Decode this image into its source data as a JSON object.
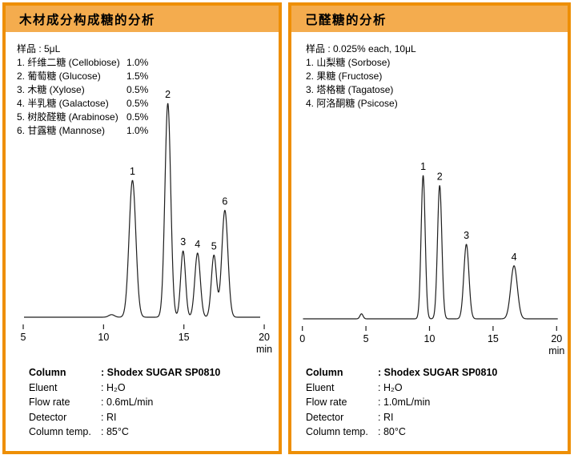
{
  "colors": {
    "panel_border": "#EE8F05",
    "header_bg": "#F4AC4E",
    "trace": "#1e1e1e",
    "text": "#000000"
  },
  "panels": [
    {
      "title": "木材成分构成糖的分析",
      "sample_header": "样品 : 5μL",
      "sample_items": [
        {
          "name": "1. 纤维二糖 (Cellobiose)",
          "pct": "1.0%"
        },
        {
          "name": "2. 葡萄糖 (Glucose)",
          "pct": "1.5%"
        },
        {
          "name": "3. 木糖 (Xylose)",
          "pct": "0.5%"
        },
        {
          "name": "4. 半乳糖 (Galactose)",
          "pct": "0.5%"
        },
        {
          "name": "5. 树胶醛糖 (Arabinose)",
          "pct": "0.5%"
        },
        {
          "name": "6. 甘露糖 (Mannose)",
          "pct": "1.0%"
        }
      ],
      "conditions": [
        {
          "label": "Column",
          "value": ": Shodex SUGAR SP0810",
          "bold": true
        },
        {
          "label": "Eluent",
          "value": ": H₂O",
          "bold": false
        },
        {
          "label": "Flow rate",
          "value": ": 0.6mL/min",
          "bold": false
        },
        {
          "label": "Detector",
          "value": ": RI",
          "bold": false
        },
        {
          "label": "Column temp.",
          "value": ": 85°C",
          "bold": false
        }
      ]
    },
    {
      "title": "己醛糖的分析",
      "sample_header": "样品 : 0.025% each, 10μL",
      "sample_items": [
        {
          "name": "1. 山梨糖 (Sorbose)",
          "pct": ""
        },
        {
          "name": "2. 果糖 (Fructose)",
          "pct": ""
        },
        {
          "name": "3. 塔格糖 (Tagatose)",
          "pct": ""
        },
        {
          "name": "4. 阿洛酮糖 (Psicose)",
          "pct": ""
        }
      ],
      "conditions": [
        {
          "label": "Column",
          "value": ": Shodex SUGAR SP0810",
          "bold": true
        },
        {
          "label": "Eluent",
          "value": ": H₂O",
          "bold": false
        },
        {
          "label": "Flow rate",
          "value": ": 1.0mL/min",
          "bold": false
        },
        {
          "label": "Detector",
          "value": ": RI",
          "bold": false
        },
        {
          "label": "Column temp.",
          "value": ": 80°C",
          "bold": false
        }
      ]
    }
  ],
  "chart_data": [
    {
      "type": "line",
      "title": "木材成分构成糖的分析 (chromatogram)",
      "xlabel": "min",
      "x_range": [
        5,
        20
      ],
      "x_ticks": [
        5,
        10,
        15,
        20
      ],
      "x_tick_labels": [
        "5",
        "10",
        "15",
        "20"
      ],
      "axis_unit": "min",
      "grid": false,
      "legend": "none",
      "peaks": [
        {
          "label": "1",
          "time_min": 11.8,
          "rel_height": 0.64,
          "sigma_min": 0.21
        },
        {
          "label": "2",
          "time_min": 14.0,
          "rel_height": 1.0,
          "sigma_min": 0.18
        },
        {
          "label": "3",
          "time_min": 14.95,
          "rel_height": 0.31,
          "sigma_min": 0.15
        },
        {
          "label": "4",
          "time_min": 15.85,
          "rel_height": 0.3,
          "sigma_min": 0.17
        },
        {
          "label": "5",
          "time_min": 16.87,
          "rel_height": 0.29,
          "sigma_min": 0.16
        },
        {
          "label": "6",
          "time_min": 17.55,
          "rel_height": 0.5,
          "sigma_min": 0.19
        }
      ],
      "minor_bumps": [
        {
          "time_min": 10.5,
          "rel_height": 0.012,
          "sigma_min": 0.18
        }
      ]
    },
    {
      "type": "line",
      "title": "己醛糖的分析 (chromatogram)",
      "xlabel": "min",
      "x_range": [
        0,
        20
      ],
      "x_ticks": [
        0,
        5,
        10,
        15,
        20
      ],
      "x_tick_labels": [
        "0",
        "5",
        "10",
        "15",
        "20"
      ],
      "axis_unit": "min",
      "grid": false,
      "legend": "none",
      "peaks": [
        {
          "label": "1",
          "time_min": 9.5,
          "rel_height": 1.0,
          "sigma_min": 0.16
        },
        {
          "label": "2",
          "time_min": 10.8,
          "rel_height": 0.93,
          "sigma_min": 0.17
        },
        {
          "label": "3",
          "time_min": 12.9,
          "rel_height": 0.52,
          "sigma_min": 0.2
        },
        {
          "label": "4",
          "time_min": 16.65,
          "rel_height": 0.37,
          "sigma_min": 0.26
        }
      ],
      "minor_bumps": [
        {
          "time_min": 4.65,
          "rel_height": 0.035,
          "sigma_min": 0.12
        }
      ]
    }
  ]
}
